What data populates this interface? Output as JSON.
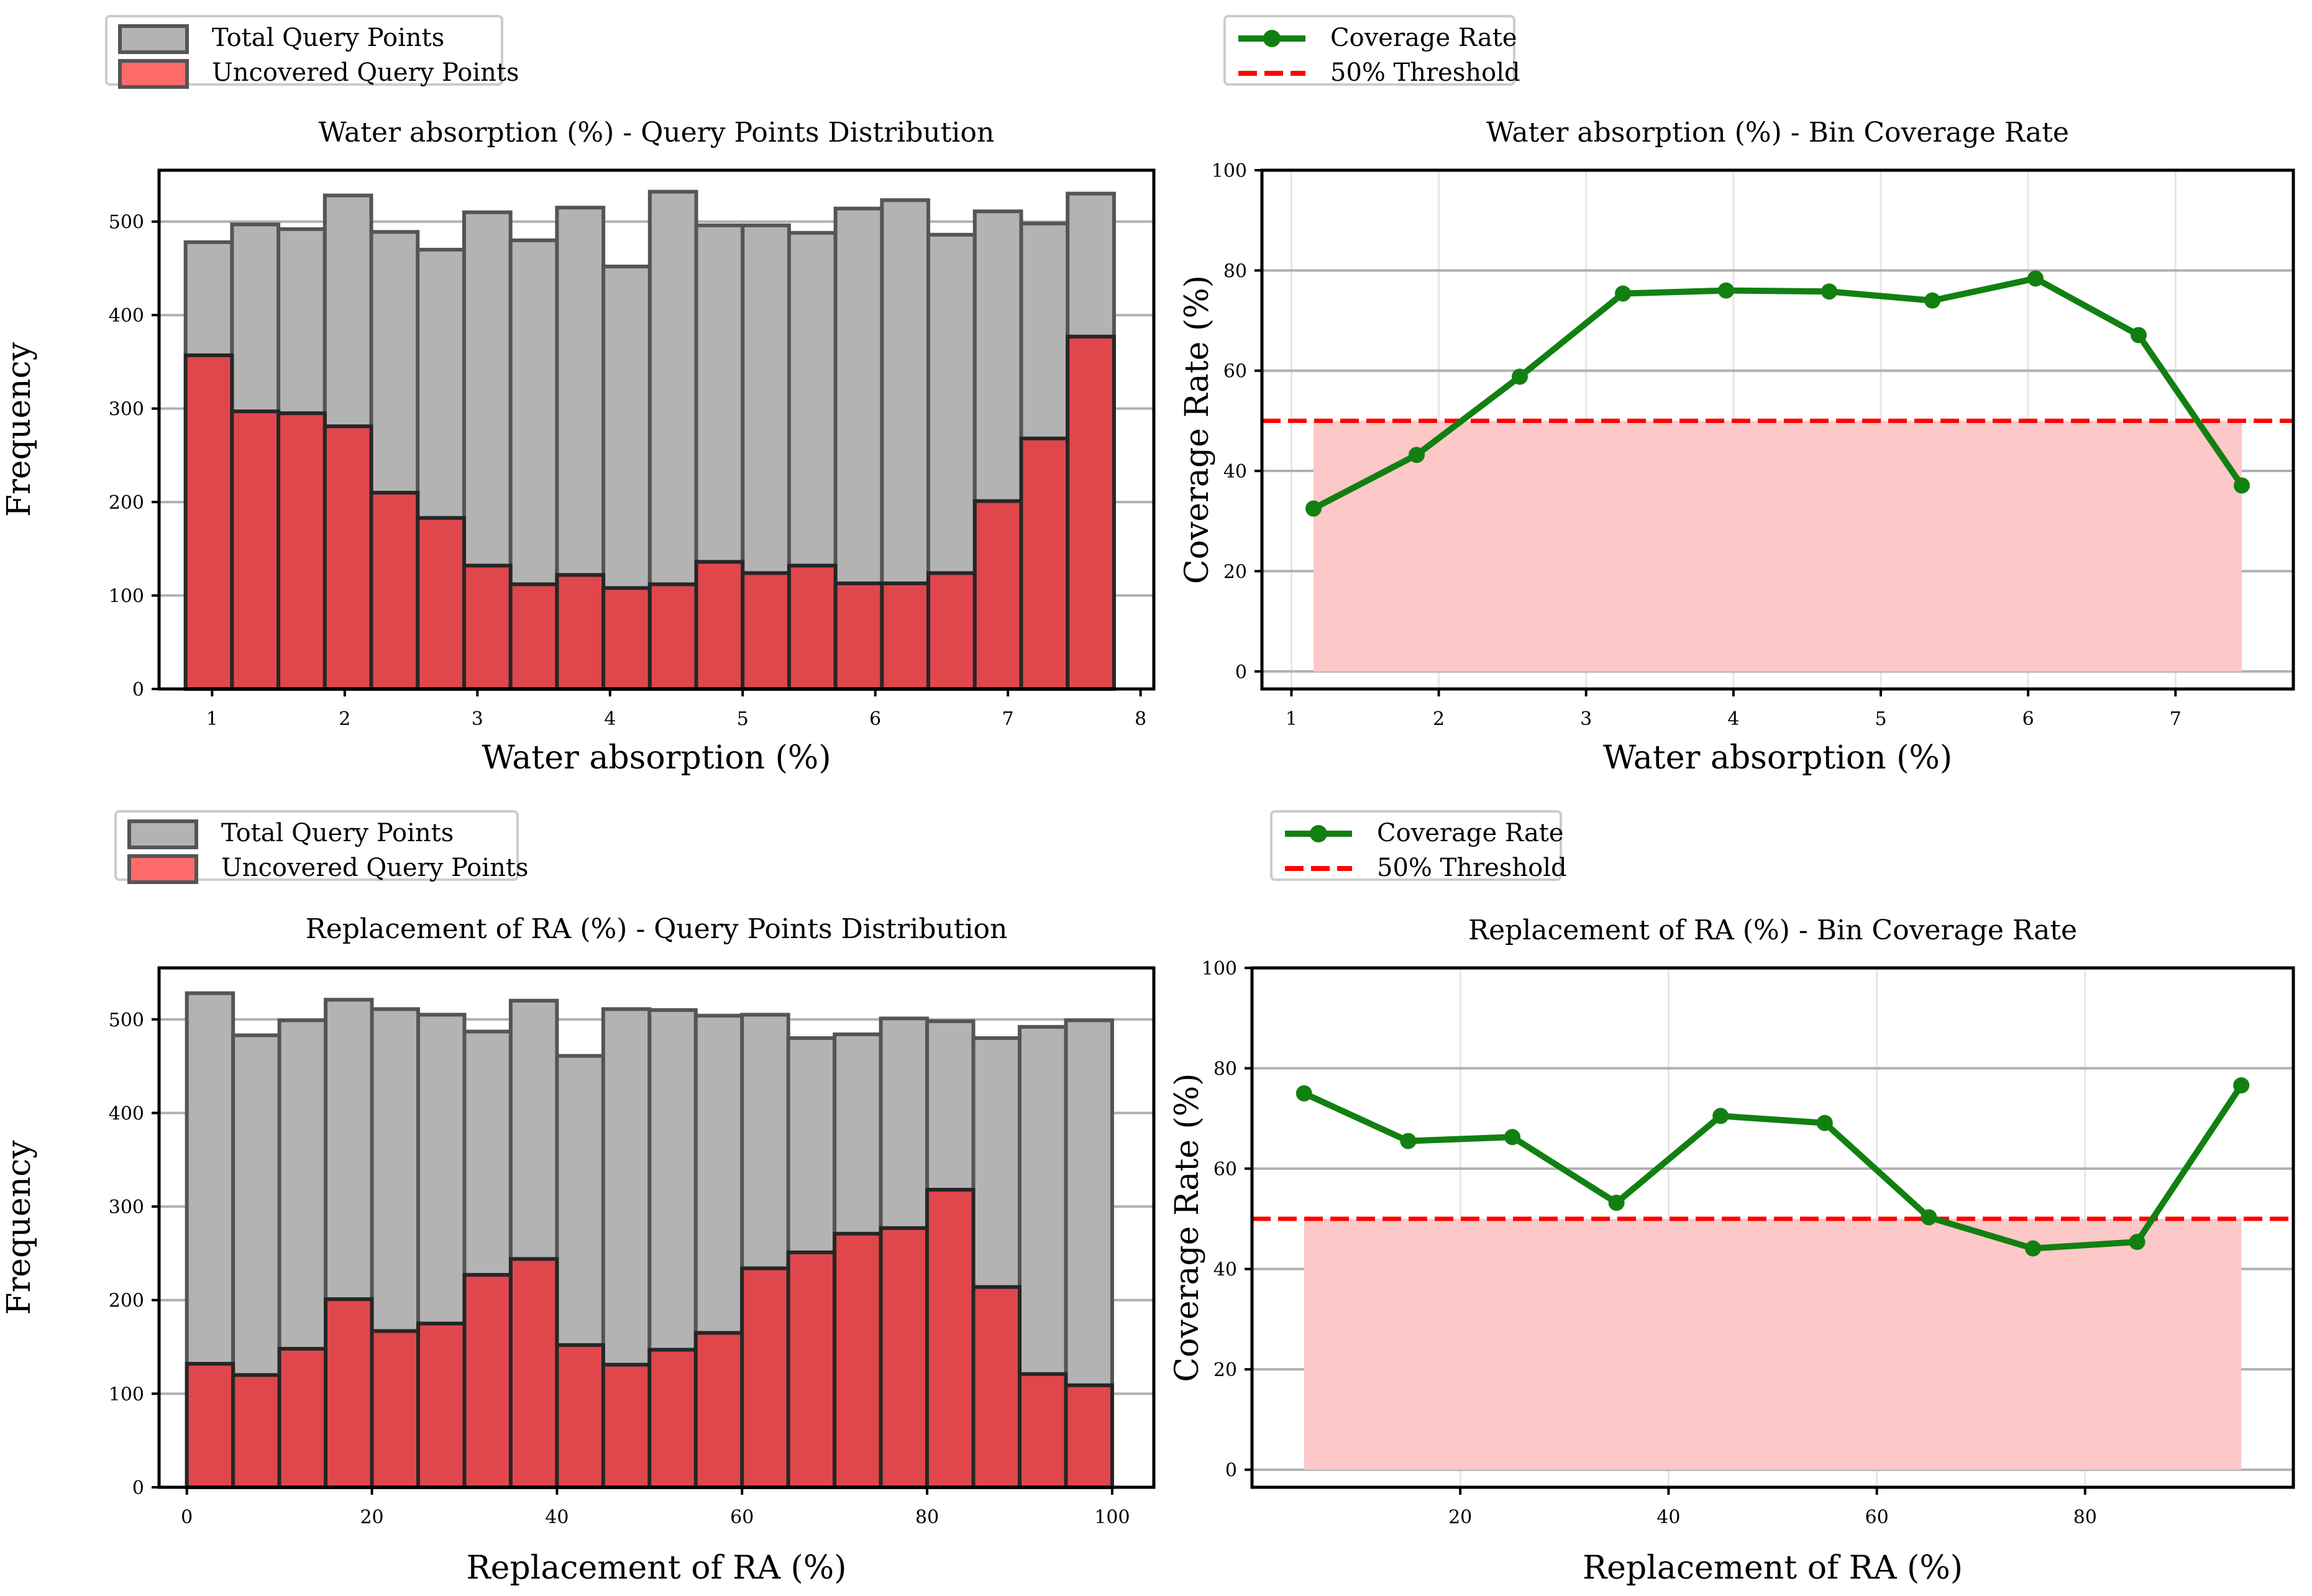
{
  "colors": {
    "total_bar": "#b3b3b3",
    "total_bar_edge": "#555555",
    "uncovered_bar": "#e0474c",
    "uncovered_bar_edge": "#262626",
    "coverage_line": "#118011",
    "threshold": "#ff0000",
    "below_threshold_fill": "#fcc8c8",
    "legend_uncovered_patch": "#ff6b6b",
    "grid": "#b0b0b0"
  },
  "chart_data": [
    {
      "type": "bar",
      "title": "Water absorption (%) - Query Points Distribution",
      "xlabel": "Water absorption (%)",
      "ylabel": "Frequency",
      "xlim": [
        0.6,
        8.1
      ],
      "ylim": [
        0,
        555
      ],
      "xticks": [
        1,
        2,
        3,
        4,
        5,
        6,
        7,
        8
      ],
      "yticks": [
        0,
        100,
        200,
        300,
        400,
        500
      ],
      "bin_edges": [
        0.8,
        1.15,
        1.5,
        1.85,
        2.2,
        2.55,
        2.9,
        3.25,
        3.6,
        3.95,
        4.3,
        4.65,
        5.0,
        5.35,
        5.7,
        6.05,
        6.4,
        6.75,
        7.1,
        7.45,
        7.8
      ],
      "series": [
        {
          "name": "Total Query Points",
          "values": [
            478,
            497,
            492,
            528,
            489,
            470,
            510,
            480,
            515,
            452,
            532,
            496,
            496,
            488,
            514,
            523,
            486,
            511,
            498,
            530
          ]
        },
        {
          "name": "Uncovered Query Points",
          "values": [
            357,
            297,
            295,
            281,
            210,
            183,
            132,
            112,
            122,
            108,
            112,
            136,
            124,
            132,
            113,
            113,
            124,
            201,
            268,
            377
          ]
        }
      ],
      "legend": [
        "Total Query Points",
        "Uncovered Query Points"
      ],
      "legend_position": "top-left, above axes",
      "grid": "horizontal"
    },
    {
      "type": "line",
      "title": "Water absorption (%) - Bin Coverage Rate",
      "xlabel": "Water absorption (%)",
      "ylabel": "Coverage Rate (%)",
      "xlim": [
        0.8,
        7.8
      ],
      "ylim": [
        -3.5,
        100
      ],
      "xticks": [
        1,
        2,
        3,
        4,
        5,
        6,
        7
      ],
      "yticks": [
        0,
        20,
        40,
        60,
        80,
        100
      ],
      "x": [
        1.15,
        1.85,
        2.55,
        3.25,
        3.95,
        4.65,
        5.35,
        6.05,
        6.75,
        7.45
      ],
      "values": [
        32.5,
        43.2,
        58.8,
        75.4,
        76.0,
        75.8,
        74.0,
        78.4,
        67.1,
        37.1
      ],
      "threshold": 50,
      "shaded_range_x": [
        1.15,
        7.45
      ],
      "legend": [
        "Coverage Rate",
        "50% Threshold"
      ],
      "legend_position": "top-left, above axes",
      "grid": "both"
    },
    {
      "type": "bar",
      "title": "Replacement of RA (%) - Query Points Distribution",
      "xlabel": "Replacement of RA (%)",
      "ylabel": "Frequency",
      "xlim": [
        -3,
        104.5
      ],
      "ylim": [
        0,
        555
      ],
      "xticks": [
        0,
        20,
        40,
        60,
        80,
        100
      ],
      "yticks": [
        0,
        100,
        200,
        300,
        400,
        500
      ],
      "bin_edges": [
        0,
        5,
        10,
        15,
        20,
        25,
        30,
        35,
        40,
        45,
        50,
        55,
        60,
        65,
        70,
        75,
        80,
        85,
        90,
        95,
        100
      ],
      "series": [
        {
          "name": "Total Query Points",
          "values": [
            528,
            483,
            499,
            521,
            511,
            505,
            487,
            520,
            461,
            511,
            510,
            504,
            505,
            480,
            484,
            501,
            498,
            480,
            492,
            499
          ]
        },
        {
          "name": "Uncovered Query Points",
          "values": [
            132,
            120,
            148,
            201,
            167,
            175,
            227,
            244,
            152,
            131,
            147,
            165,
            234,
            251,
            271,
            277,
            318,
            214,
            121,
            109
          ]
        }
      ],
      "legend": [
        "Total Query Points",
        "Uncovered Query Points"
      ],
      "legend_position": "top-left, above axes",
      "grid": "horizontal"
    },
    {
      "type": "line",
      "title": "Replacement of RA (%)  - Bin Coverage Rate",
      "xlabel": "Replacement of RA (%)",
      "ylabel": "Coverage Rate (%)",
      "xlim": [
        0,
        100
      ],
      "ylim": [
        -3.5,
        100
      ],
      "xticks": [
        20,
        40,
        60,
        80
      ],
      "yticks": [
        0,
        20,
        40,
        60,
        80,
        100
      ],
      "x": [
        5,
        15,
        25,
        35,
        45,
        55,
        65,
        75,
        85,
        95
      ],
      "values": [
        75.0,
        65.5,
        66.3,
        53.2,
        70.5,
        69.1,
        50.3,
        44.1,
        45.4,
        76.6
      ],
      "threshold": 50,
      "shaded_range_x": [
        5,
        95
      ],
      "legend": [
        "Coverage Rate",
        "50% Threshold"
      ],
      "legend_position": "top-left, above axes",
      "grid": "both"
    }
  ]
}
